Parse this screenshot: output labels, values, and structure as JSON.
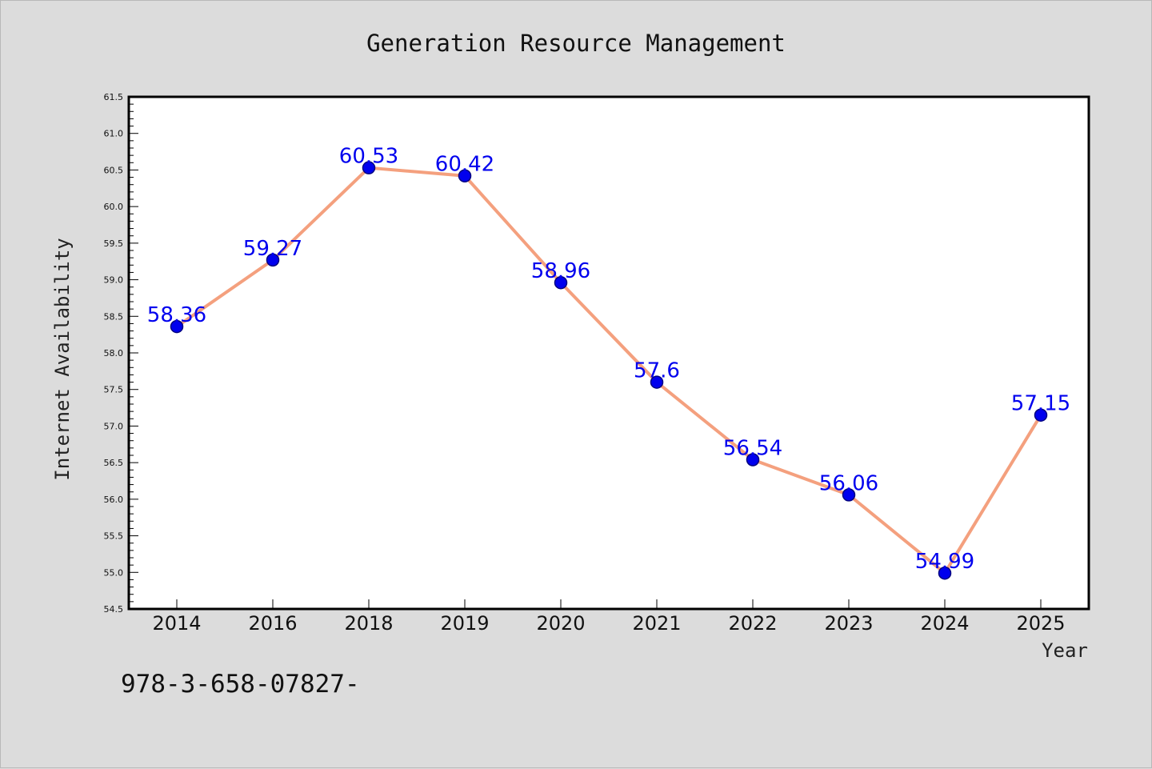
{
  "chart_data": {
    "type": "line",
    "title": "Generation Resource Management",
    "xlabel": "Year",
    "ylabel": "Internet Availability",
    "categories": [
      "2014",
      "2016",
      "2018",
      "2019",
      "2020",
      "2021",
      "2022",
      "2023",
      "2024",
      "2025"
    ],
    "series": [
      {
        "values": [
          58.36,
          59.27,
          60.53,
          60.42,
          58.96,
          57.6,
          56.54,
          56.06,
          54.99,
          57.15
        ]
      }
    ],
    "data_labels": [
      "58.36",
      "59.27",
      "60.53",
      "60.42",
      "58.96",
      "57.6",
      "56.54",
      "56.06",
      "54.99",
      "57.15"
    ],
    "ylim": [
      54.5,
      61.5
    ],
    "y_ticks": [
      "54.5",
      "55.0",
      "55.5",
      "56.0",
      "56.5",
      "57.0",
      "57.5",
      "58.0",
      "58.5",
      "59.0",
      "59.5",
      "60.0",
      "60.5",
      "61.0",
      "61.5"
    ],
    "grid": false,
    "colors": {
      "line": "#f4a07e",
      "marker_fill": "#0000ee",
      "marker_stroke": "#000080",
      "data_label": "#0000ee",
      "plot_background": "#ffffff",
      "figure_background": "#dcdcdc"
    }
  },
  "footer": {
    "text": "978-3-658-07827-"
  }
}
